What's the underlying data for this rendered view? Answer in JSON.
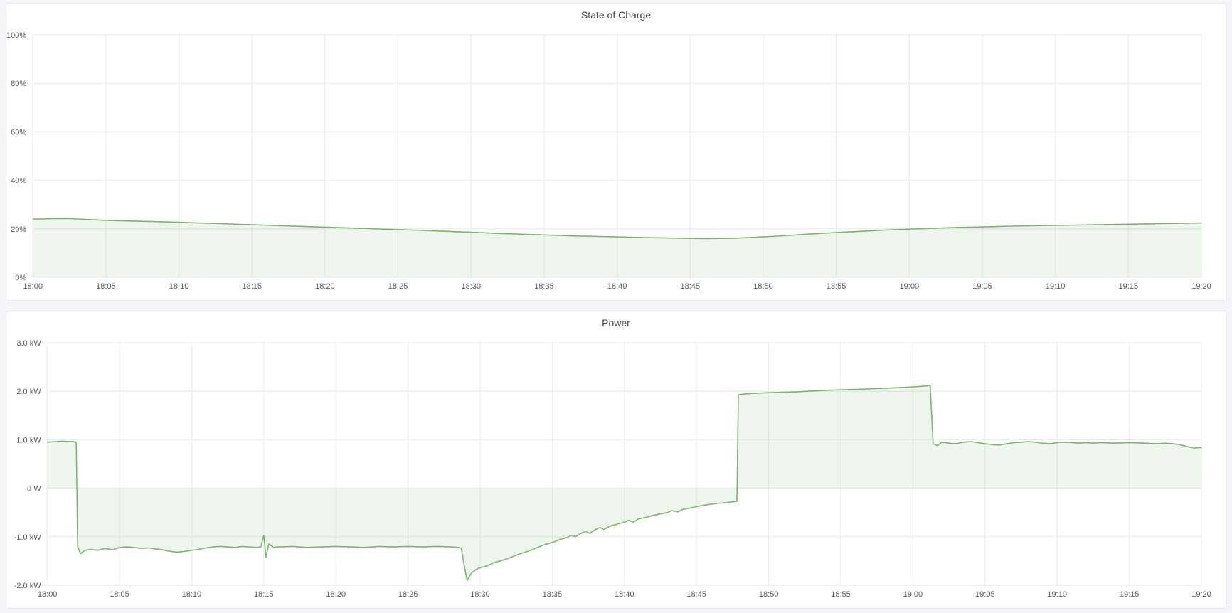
{
  "colors": {
    "series_line": "#7cb56e",
    "series_fill": "rgba(123,179,107,0.13)",
    "gridline": "#e9eaed",
    "page_background": "#f4f5f9",
    "panel_background": "#ffffff",
    "panel_border": "#e4e6eb",
    "tick_text": "#54575e",
    "title_text": "#3f434c"
  },
  "chart_data": [
    {
      "type": "area",
      "title": "State of Charge",
      "xlabel": "",
      "ylabel": "",
      "xlim": [
        0,
        80
      ],
      "ylim": [
        0,
        100
      ],
      "grid": true,
      "legend": "none",
      "x_unit": "minutes after 18:00",
      "x_ticks": [
        {
          "t": 0,
          "label": "18:00"
        },
        {
          "t": 5,
          "label": "18:05"
        },
        {
          "t": 10,
          "label": "18:10"
        },
        {
          "t": 15,
          "label": "18:15"
        },
        {
          "t": 20,
          "label": "18:20"
        },
        {
          "t": 25,
          "label": "18:25"
        },
        {
          "t": 30,
          "label": "18:30"
        },
        {
          "t": 35,
          "label": "18:35"
        },
        {
          "t": 40,
          "label": "18:40"
        },
        {
          "t": 45,
          "label": "18:45"
        },
        {
          "t": 50,
          "label": "18:50"
        },
        {
          "t": 55,
          "label": "18:55"
        },
        {
          "t": 60,
          "label": "19:00"
        },
        {
          "t": 65,
          "label": "19:05"
        },
        {
          "t": 70,
          "label": "19:10"
        },
        {
          "t": 75,
          "label": "19:15"
        },
        {
          "t": 80,
          "label": "19:20"
        }
      ],
      "y_ticks": [
        {
          "v": 0,
          "label": "0%"
        },
        {
          "v": 20,
          "label": "20%"
        },
        {
          "v": 40,
          "label": "40%"
        },
        {
          "v": 60,
          "label": "60%"
        },
        {
          "v": 80,
          "label": "80%"
        },
        {
          "v": 100,
          "label": "100%"
        }
      ],
      "series": [
        {
          "name": "State of Charge",
          "points": [
            [
              0,
              24.0
            ],
            [
              1.5,
              24.2
            ],
            [
              2.5,
              24.2
            ],
            [
              4,
              23.8
            ],
            [
              5,
              23.5
            ],
            [
              7,
              23.2
            ],
            [
              10,
              22.7
            ],
            [
              12,
              22.3
            ],
            [
              15,
              21.7
            ],
            [
              17,
              21.3
            ],
            [
              20,
              20.7
            ],
            [
              22,
              20.3
            ],
            [
              25,
              19.7
            ],
            [
              27,
              19.3
            ],
            [
              30,
              18.6
            ],
            [
              32,
              18.1
            ],
            [
              35,
              17.5
            ],
            [
              37,
              17.1
            ],
            [
              40,
              16.7
            ],
            [
              42,
              16.4
            ],
            [
              44,
              16.2
            ],
            [
              46,
              16.0
            ],
            [
              48,
              16.1
            ],
            [
              49,
              16.4
            ],
            [
              51,
              17.0
            ],
            [
              53,
              17.8
            ],
            [
              55,
              18.5
            ],
            [
              57,
              19.1
            ],
            [
              59,
              19.7
            ],
            [
              61,
              20.1
            ],
            [
              63,
              20.5
            ],
            [
              65,
              20.8
            ],
            [
              67,
              21.1
            ],
            [
              70,
              21.4
            ],
            [
              72,
              21.6
            ],
            [
              75,
              21.9
            ],
            [
              77,
              22.1
            ],
            [
              79,
              22.3
            ],
            [
              80,
              22.4
            ]
          ]
        }
      ]
    },
    {
      "type": "area",
      "title": "Power",
      "xlabel": "",
      "ylabel": "",
      "xlim": [
        0,
        80
      ],
      "ylim": [
        -2,
        3
      ],
      "grid": true,
      "legend": "none",
      "x_unit": "minutes after 18:00",
      "y_unit": "kW",
      "x_ticks": [
        {
          "t": 0,
          "label": "18:00"
        },
        {
          "t": 5,
          "label": "18:05"
        },
        {
          "t": 10,
          "label": "18:10"
        },
        {
          "t": 15,
          "label": "18:15"
        },
        {
          "t": 20,
          "label": "18:20"
        },
        {
          "t": 25,
          "label": "18:25"
        },
        {
          "t": 30,
          "label": "18:30"
        },
        {
          "t": 35,
          "label": "18:35"
        },
        {
          "t": 40,
          "label": "18:40"
        },
        {
          "t": 45,
          "label": "18:45"
        },
        {
          "t": 50,
          "label": "18:50"
        },
        {
          "t": 55,
          "label": "18:55"
        },
        {
          "t": 60,
          "label": "19:00"
        },
        {
          "t": 65,
          "label": "19:05"
        },
        {
          "t": 70,
          "label": "19:10"
        },
        {
          "t": 75,
          "label": "19:15"
        },
        {
          "t": 80,
          "label": "19:20"
        }
      ],
      "y_ticks": [
        {
          "v": -2,
          "label": "-2.0 kW"
        },
        {
          "v": -1,
          "label": "-1.0 kW"
        },
        {
          "v": 0,
          "label": "0 W"
        },
        {
          "v": 1,
          "label": "1.0 kW"
        },
        {
          "v": 2,
          "label": "2.0 kW"
        },
        {
          "v": 3,
          "label": "3.0 kW"
        }
      ],
      "series": [
        {
          "name": "Power",
          "points": [
            [
              0,
              0.95
            ],
            [
              0.5,
              0.96
            ],
            [
              1,
              0.97
            ],
            [
              1.8,
              0.96
            ],
            [
              2,
              0.95
            ],
            [
              2.1,
              -1.2
            ],
            [
              2.3,
              -1.35
            ],
            [
              2.6,
              -1.28
            ],
            [
              3,
              -1.26
            ],
            [
              3.5,
              -1.28
            ],
            [
              4,
              -1.24
            ],
            [
              4.5,
              -1.27
            ],
            [
              5,
              -1.22
            ],
            [
              5.5,
              -1.21
            ],
            [
              6,
              -1.22
            ],
            [
              6.5,
              -1.24
            ],
            [
              7,
              -1.23
            ],
            [
              7.5,
              -1.25
            ],
            [
              8,
              -1.27
            ],
            [
              8.5,
              -1.3
            ],
            [
              9,
              -1.32
            ],
            [
              9.5,
              -1.3
            ],
            [
              10,
              -1.28
            ],
            [
              10.5,
              -1.26
            ],
            [
              11,
              -1.23
            ],
            [
              11.5,
              -1.21
            ],
            [
              12,
              -1.2
            ],
            [
              12.5,
              -1.21
            ],
            [
              13,
              -1.22
            ],
            [
              13.5,
              -1.2
            ],
            [
              14.5,
              -1.22
            ],
            [
              14.8,
              -1.21
            ],
            [
              15,
              -0.97
            ],
            [
              15.15,
              -1.42
            ],
            [
              15.35,
              -1.15
            ],
            [
              15.7,
              -1.22
            ],
            [
              16,
              -1.21
            ],
            [
              17,
              -1.2
            ],
            [
              18,
              -1.22
            ],
            [
              19,
              -1.21
            ],
            [
              20,
              -1.2
            ],
            [
              21,
              -1.21
            ],
            [
              22,
              -1.22
            ],
            [
              23,
              -1.2
            ],
            [
              24,
              -1.21
            ],
            [
              25,
              -1.2
            ],
            [
              26,
              -1.21
            ],
            [
              27,
              -1.2
            ],
            [
              28,
              -1.21
            ],
            [
              28.5,
              -1.22
            ],
            [
              28.7,
              -1.24
            ],
            [
              28.9,
              -1.6
            ],
            [
              29.1,
              -1.9
            ],
            [
              29.4,
              -1.75
            ],
            [
              29.7,
              -1.68
            ],
            [
              30,
              -1.64
            ],
            [
              30.5,
              -1.6
            ],
            [
              31,
              -1.53
            ],
            [
              31.5,
              -1.49
            ],
            [
              32,
              -1.44
            ],
            [
              32.5,
              -1.38
            ],
            [
              33,
              -1.33
            ],
            [
              33.5,
              -1.28
            ],
            [
              34,
              -1.22
            ],
            [
              34.5,
              -1.16
            ],
            [
              35,
              -1.12
            ],
            [
              35.5,
              -1.06
            ],
            [
              36,
              -1.02
            ],
            [
              36.3,
              -0.97
            ],
            [
              36.6,
              -1.0
            ],
            [
              37,
              -0.93
            ],
            [
              37.3,
              -0.89
            ],
            [
              37.6,
              -0.93
            ],
            [
              38,
              -0.85
            ],
            [
              38.3,
              -0.81
            ],
            [
              38.6,
              -0.85
            ],
            [
              39,
              -0.78
            ],
            [
              39.5,
              -0.74
            ],
            [
              40,
              -0.7
            ],
            [
              40.3,
              -0.66
            ],
            [
              40.6,
              -0.7
            ],
            [
              41,
              -0.63
            ],
            [
              41.5,
              -0.6
            ],
            [
              42,
              -0.56
            ],
            [
              42.5,
              -0.53
            ],
            [
              43,
              -0.5
            ],
            [
              43.3,
              -0.46
            ],
            [
              43.7,
              -0.49
            ],
            [
              44,
              -0.44
            ],
            [
              44.5,
              -0.41
            ],
            [
              45,
              -0.38
            ],
            [
              45.5,
              -0.35
            ],
            [
              46,
              -0.33
            ],
            [
              46.5,
              -0.31
            ],
            [
              47,
              -0.3
            ],
            [
              47.5,
              -0.28
            ],
            [
              47.8,
              -0.27
            ],
            [
              47.9,
              1.93
            ],
            [
              48.5,
              1.95
            ],
            [
              50,
              1.97
            ],
            [
              52,
              1.99
            ],
            [
              54,
              2.02
            ],
            [
              56,
              2.04
            ],
            [
              58,
              2.06
            ],
            [
              60,
              2.09
            ],
            [
              61,
              2.11
            ],
            [
              61.2,
              2.12
            ],
            [
              61.4,
              0.92
            ],
            [
              61.7,
              0.88
            ],
            [
              62,
              0.95
            ],
            [
              62.5,
              0.93
            ],
            [
              63,
              0.92
            ],
            [
              63.5,
              0.95
            ],
            [
              64,
              0.96
            ],
            [
              64.5,
              0.94
            ],
            [
              65,
              0.92
            ],
            [
              65.5,
              0.9
            ],
            [
              66,
              0.89
            ],
            [
              66.5,
              0.92
            ],
            [
              67,
              0.94
            ],
            [
              67.5,
              0.95
            ],
            [
              68,
              0.96
            ],
            [
              68.5,
              0.95
            ],
            [
              69,
              0.93
            ],
            [
              69.5,
              0.92
            ],
            [
              70,
              0.94
            ],
            [
              70.5,
              0.95
            ],
            [
              71,
              0.94
            ],
            [
              71.5,
              0.93
            ],
            [
              72,
              0.94
            ],
            [
              72.5,
              0.93
            ],
            [
              73,
              0.94
            ],
            [
              74,
              0.93
            ],
            [
              75,
              0.94
            ],
            [
              76,
              0.93
            ],
            [
              77,
              0.92
            ],
            [
              77.5,
              0.93
            ],
            [
              78,
              0.92
            ],
            [
              78.5,
              0.9
            ],
            [
              79,
              0.86
            ],
            [
              79.5,
              0.83
            ],
            [
              80,
              0.84
            ]
          ]
        }
      ]
    }
  ]
}
